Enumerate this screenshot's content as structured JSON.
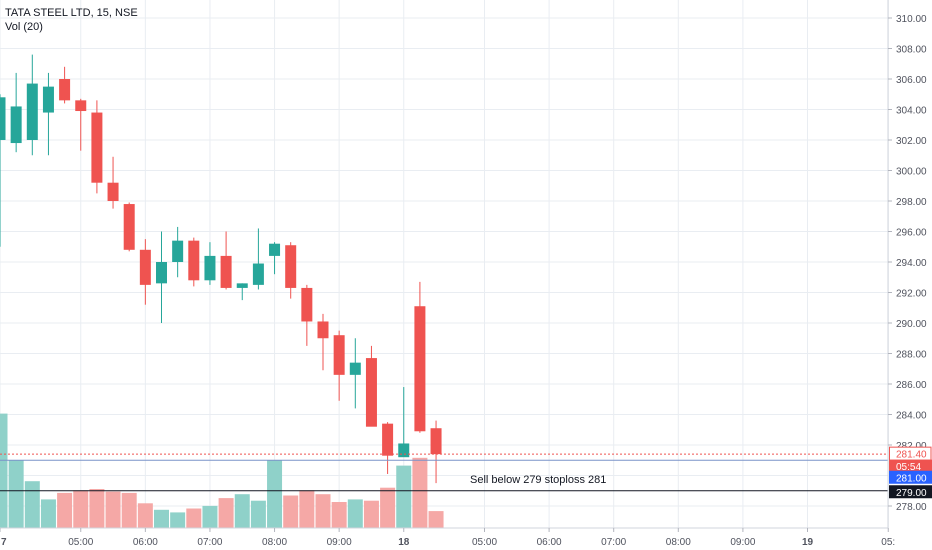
{
  "header": {
    "symbol_title": "TATA STEEL LTD, 15, NSE",
    "indicator": "Vol (20)"
  },
  "colors": {
    "up": "#26a69a",
    "down": "#ef5350",
    "vol_up": "#8fd1c9",
    "vol_down": "#f5a8a6",
    "grid": "#e9edf2",
    "axis_text": "#50535e",
    "price_line": "#ef5350",
    "label_red": "#ef5350",
    "label_blue": "#2962ff",
    "label_black": "#131722"
  },
  "annotation": {
    "text": "Sell below 279 stoploss 281"
  },
  "price_labels": {
    "last_price": "281.40",
    "countdown": "05:54",
    "line_281": "281.00",
    "line_279": "279.00"
  },
  "chart_data": {
    "type": "candlestick",
    "y_axis": {
      "ticks": [
        278,
        280,
        282,
        284,
        286,
        288,
        290,
        292,
        294,
        296,
        298,
        300,
        302,
        304,
        306,
        308,
        310
      ],
      "tick_labels": [
        "278.00",
        "",
        "282.00",
        "284.00",
        "286.00",
        "288.00",
        "290.00",
        "292.00",
        "294.00",
        "296.00",
        "298.00",
        "300.00",
        "302.00",
        "304.00",
        "306.00",
        "308.00",
        "310.00"
      ],
      "range": [
        276.6,
        311.1
      ]
    },
    "x_axis": {
      "tick_labels": [
        "7",
        "05:00",
        "06:00",
        "07:00",
        "08:00",
        "09:00",
        "18",
        "05:00",
        "06:00",
        "07:00",
        "08:00",
        "09:00",
        "19",
        "05:"
      ],
      "tick_bar_index": [
        0,
        5,
        9,
        13,
        17,
        21,
        25,
        30,
        34,
        38,
        42,
        46,
        50,
        55
      ]
    },
    "candles": [
      {
        "o": 302.0,
        "h": 305.0,
        "l": 295.0,
        "c": 304.8
      },
      {
        "o": 301.8,
        "h": 306.4,
        "l": 301.2,
        "c": 304.2
      },
      {
        "o": 302.0,
        "h": 307.6,
        "l": 301.0,
        "c": 305.7
      },
      {
        "o": 303.8,
        "h": 306.4,
        "l": 301.0,
        "c": 305.5
      },
      {
        "o": 306.0,
        "h": 306.8,
        "l": 304.4,
        "c": 304.6
      },
      {
        "o": 304.6,
        "h": 304.7,
        "l": 301.3,
        "c": 303.9
      },
      {
        "o": 303.8,
        "h": 304.6,
        "l": 298.5,
        "c": 299.2
      },
      {
        "o": 299.2,
        "h": 300.9,
        "l": 297.5,
        "c": 298.0
      },
      {
        "o": 297.8,
        "h": 297.9,
        "l": 294.7,
        "c": 294.8
      },
      {
        "o": 294.8,
        "h": 295.5,
        "l": 291.2,
        "c": 292.5
      },
      {
        "o": 292.6,
        "h": 296.0,
        "l": 290.0,
        "c": 294.0
      },
      {
        "o": 294.0,
        "h": 296.3,
        "l": 293.0,
        "c": 295.4
      },
      {
        "o": 295.4,
        "h": 295.6,
        "l": 292.4,
        "c": 292.8
      },
      {
        "o": 292.8,
        "h": 295.3,
        "l": 292.5,
        "c": 294.4
      },
      {
        "o": 294.4,
        "h": 296.0,
        "l": 292.2,
        "c": 292.3
      },
      {
        "o": 292.3,
        "h": 292.6,
        "l": 291.5,
        "c": 292.6
      },
      {
        "o": 292.5,
        "h": 296.2,
        "l": 292.2,
        "c": 293.9
      },
      {
        "o": 294.4,
        "h": 295.3,
        "l": 293.2,
        "c": 295.2
      },
      {
        "o": 295.1,
        "h": 295.3,
        "l": 291.6,
        "c": 292.3
      },
      {
        "o": 292.3,
        "h": 292.5,
        "l": 288.5,
        "c": 290.1
      },
      {
        "o": 290.1,
        "h": 290.6,
        "l": 286.9,
        "c": 289.0
      },
      {
        "o": 289.2,
        "h": 289.5,
        "l": 284.9,
        "c": 286.6
      },
      {
        "o": 286.6,
        "h": 289.0,
        "l": 284.4,
        "c": 287.4
      },
      {
        "o": 287.7,
        "h": 288.5,
        "l": 283.4,
        "c": 283.2
      },
      {
        "o": 283.4,
        "h": 283.5,
        "l": 280.1,
        "c": 281.3
      },
      {
        "o": 281.2,
        "h": 285.8,
        "l": 281.3,
        "c": 282.1
      },
      {
        "o": 291.1,
        "h": 292.7,
        "l": 282.8,
        "c": 282.9
      },
      {
        "o": 283.1,
        "h": 283.6,
        "l": 279.5,
        "c": 281.4
      }
    ],
    "volume": {
      "max_scale": 1.0,
      "values": [
        0.88,
        0.52,
        0.36,
        0.22,
        0.27,
        0.29,
        0.3,
        0.28,
        0.27,
        0.19,
        0.14,
        0.12,
        0.15,
        0.17,
        0.23,
        0.26,
        0.21,
        0.52,
        0.25,
        0.29,
        0.26,
        0.2,
        0.22,
        0.21,
        0.31,
        0.48,
        0.54,
        0.13
      ]
    },
    "horizontal_lines": [
      {
        "price": 281.4,
        "style": "dotted",
        "label": "281.40"
      },
      {
        "price": 281.0,
        "style": "solid",
        "label": "281.00"
      },
      {
        "price": 279.0,
        "style": "solid",
        "label": "279.00"
      }
    ]
  }
}
